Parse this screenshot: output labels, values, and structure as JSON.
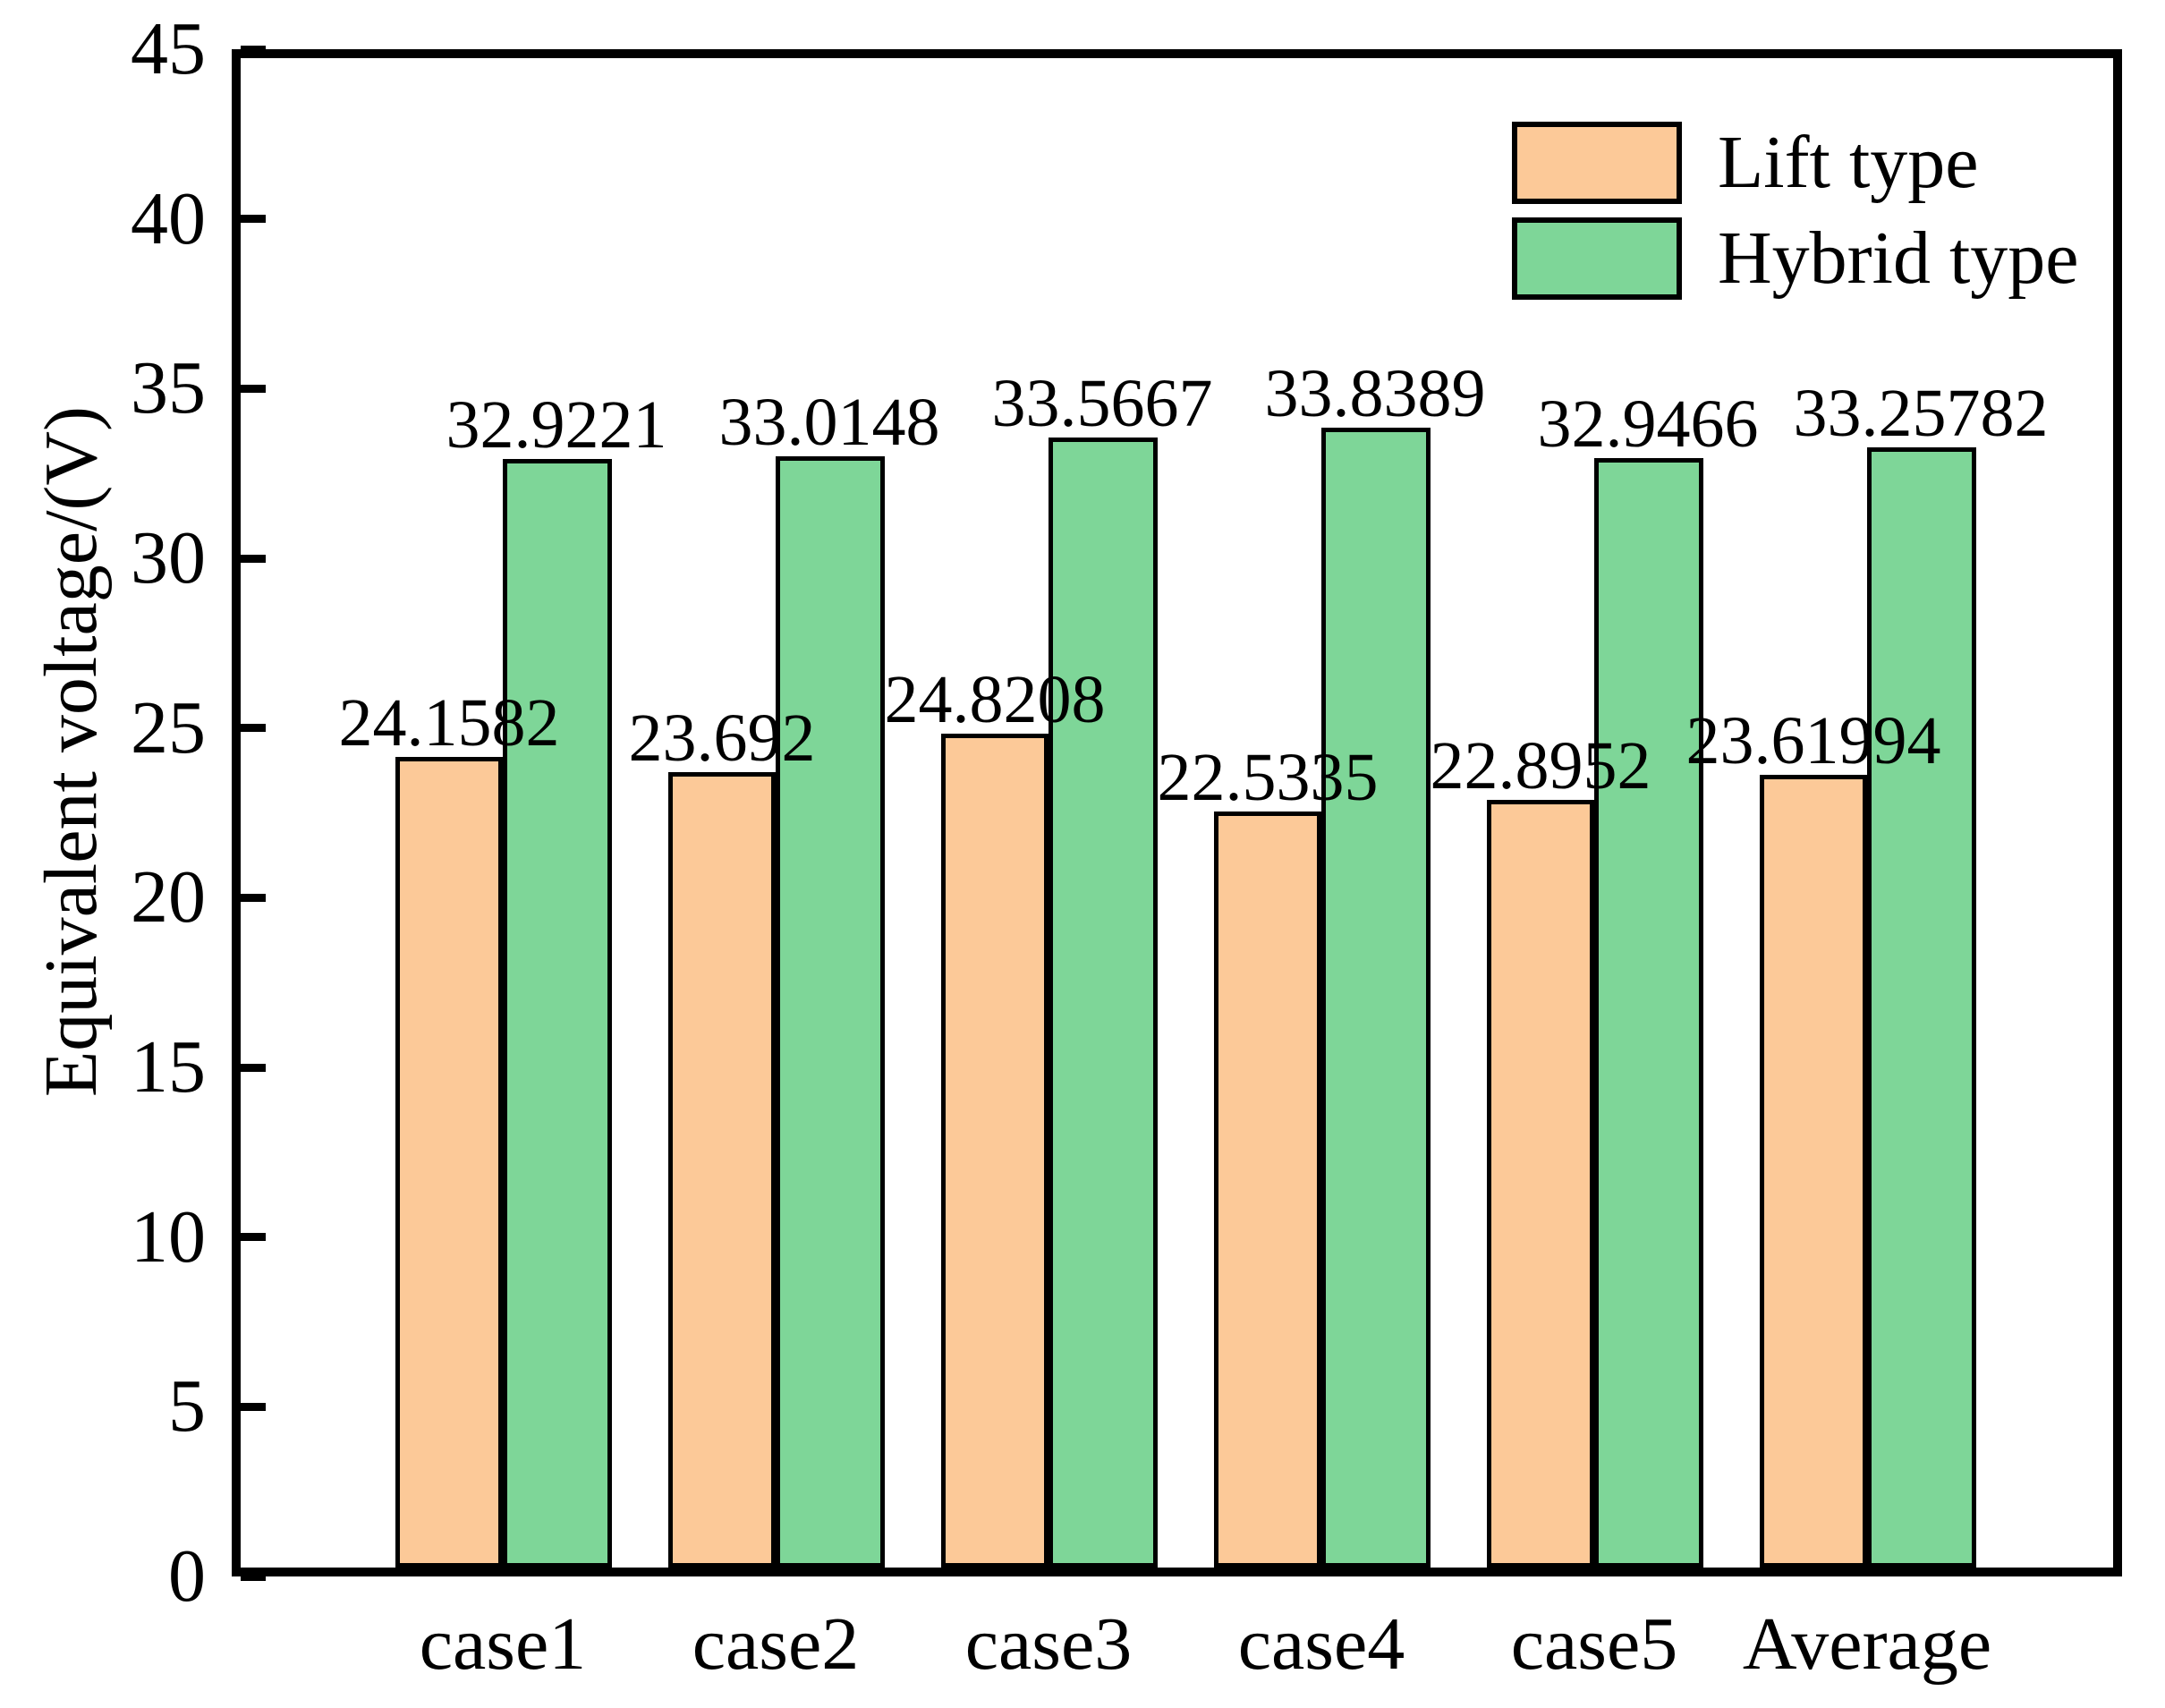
{
  "chart_data": {
    "type": "bar",
    "categories": [
      "case1",
      "case2",
      "case3",
      "case4",
      "case5",
      "Average"
    ],
    "series": [
      {
        "name": "Lift type",
        "color": "#FCC998",
        "edge_color": "#000000",
        "values": [
          24.1582,
          23.692,
          24.8208,
          22.5335,
          22.8952,
          23.61994
        ],
        "value_labels": [
          "24.1582",
          "23.692",
          "24.8208",
          "22.5335",
          "22.8952",
          "23.61994"
        ]
      },
      {
        "name": "Hybrid type",
        "color": "#7ED698",
        "edge_color": "#000000",
        "values": [
          32.9221,
          33.0148,
          33.5667,
          33.8389,
          32.9466,
          33.25782
        ],
        "value_labels": [
          "32.9221",
          "33.0148",
          "33.5667",
          "33.8389",
          "32.9466",
          "33.25782"
        ]
      }
    ],
    "title": "",
    "xlabel": "",
    "ylabel": "Equivalent voltage/(V)",
    "ylim": [
      0,
      45
    ],
    "yticks": [
      0,
      5,
      10,
      15,
      20,
      25,
      30,
      35,
      40,
      45
    ],
    "grid": false,
    "legend_position": "top-right",
    "background": "#FFFFFF",
    "axis_color": "#000000"
  }
}
